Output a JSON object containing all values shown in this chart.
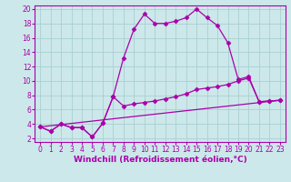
{
  "bg_color": "#cce8ea",
  "grid_color": "#aacfd2",
  "line_color": "#aa00aa",
  "spine_color": "#aa00aa",
  "xlim": [
    -0.5,
    23.5
  ],
  "ylim": [
    1.5,
    20.5
  ],
  "ytick_vals": [
    2,
    4,
    6,
    8,
    10,
    12,
    14,
    16,
    18,
    20
  ],
  "xtick_vals": [
    0,
    1,
    2,
    3,
    4,
    5,
    6,
    7,
    8,
    9,
    10,
    11,
    12,
    13,
    14,
    15,
    16,
    17,
    18,
    19,
    20,
    21,
    22,
    23
  ],
  "xlabel": "Windchill (Refroidissement éolien,°C)",
  "curve1_x": [
    0,
    1,
    2,
    3,
    4,
    5,
    6,
    7,
    8,
    9,
    10,
    11,
    12,
    13,
    14,
    15,
    16,
    17,
    18,
    19,
    20,
    21,
    22,
    23
  ],
  "curve1_y": [
    3.6,
    3.0,
    4.0,
    3.5,
    3.5,
    2.2,
    4.1,
    7.8,
    13.2,
    17.2,
    19.3,
    18.0,
    18.0,
    18.3,
    18.8,
    20.0,
    18.8,
    17.7,
    15.3,
    10.2,
    10.6,
    7.1,
    7.2,
    7.3
  ],
  "curve2_x": [
    0,
    1,
    2,
    3,
    4,
    5,
    6,
    7,
    8,
    9,
    10,
    11,
    12,
    13,
    14,
    15,
    16,
    17,
    18,
    19,
    20,
    21,
    22,
    23
  ],
  "curve2_y": [
    3.6,
    3.0,
    4.0,
    3.5,
    3.5,
    2.2,
    4.1,
    7.8,
    6.5,
    6.8,
    7.0,
    7.2,
    7.5,
    7.8,
    8.2,
    8.8,
    9.0,
    9.2,
    9.5,
    10.0,
    10.4,
    7.1,
    7.2,
    7.3
  ],
  "line3_x": [
    0,
    23
  ],
  "line3_y": [
    3.6,
    7.3
  ],
  "font_size_xlabel": 6.5,
  "font_size_ticks": 5.5,
  "marker": "D",
  "marker_size": 2.5,
  "line_width": 0.9
}
